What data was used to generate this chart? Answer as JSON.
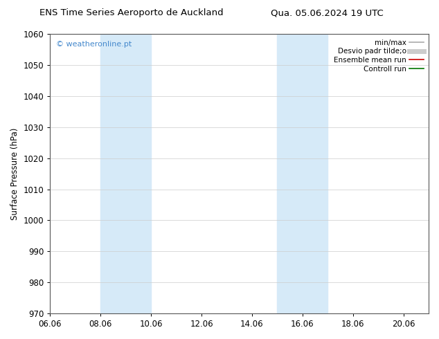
{
  "title_left": "ENS Time Series Aeroporto de Auckland",
  "title_right": "Qua. 05.06.2024 19 UTC",
  "ylabel": "Surface Pressure (hPa)",
  "ylim": [
    970,
    1060
  ],
  "yticks": [
    970,
    980,
    990,
    1000,
    1010,
    1020,
    1030,
    1040,
    1050,
    1060
  ],
  "xlim_min": 6.06,
  "xlim_max": 21.06,
  "xticks": [
    6.06,
    8.06,
    10.06,
    12.06,
    14.06,
    16.06,
    18.06,
    20.06
  ],
  "xticklabels": [
    "06.06",
    "08.06",
    "10.06",
    "12.06",
    "14.06",
    "16.06",
    "18.06",
    "20.06"
  ],
  "shaded_regions": [
    {
      "xmin": 8.06,
      "xmax": 10.06
    },
    {
      "xmin": 15.06,
      "xmax": 17.06
    }
  ],
  "shaded_color": "#d6eaf8",
  "watermark": "© weatheronline.pt",
  "watermark_color": "#4488cc",
  "legend_items": [
    {
      "label": "min/max",
      "color": "#aaaaaa",
      "lw": 1.2
    },
    {
      "label": "Desvio padr tilde;o",
      "color": "#cccccc",
      "lw": 5
    },
    {
      "label": "Ensemble mean run",
      "color": "#cc0000",
      "lw": 1.2
    },
    {
      "label": "Controll run",
      "color": "#007700",
      "lw": 1.2
    }
  ],
  "bg_color": "#ffffff",
  "title_fontsize": 9.5,
  "ylabel_fontsize": 8.5,
  "tick_fontsize": 8.5,
  "legend_fontsize": 7.5,
  "watermark_fontsize": 8
}
